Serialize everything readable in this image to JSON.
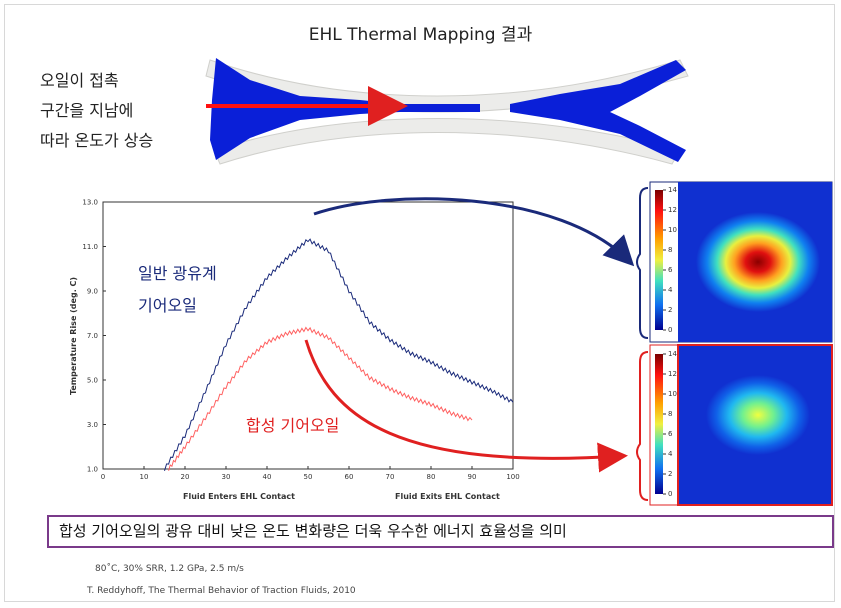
{
  "title": "EHL Thermal Mapping 결과",
  "note_lines": [
    "오일이 접촉",
    "구간을 지남에",
    "따라 온도가 상승"
  ],
  "label_general": [
    "일반 광유계",
    "기어오일"
  ],
  "label_synthetic": "합성 기어오일",
  "summary": "합성 기어오일의 광유 대비 낮은 온도 변화량은 더욱 우수한 에너지 효율성을 의미",
  "conditions": "80˚C, 30% SRR, 1.2 GPa, 2.5 m/s",
  "reference": "T. Reddyhoff, The Thermal Behavior of Traction Fluids, 2010",
  "colors": {
    "general": "#1a2a7a",
    "synthetic": "#ff6060",
    "arrow_red": "#e02020",
    "box": "#7a3a8a",
    "contact_blue": "#0a1fd8"
  },
  "chart_data": {
    "type": "line",
    "xlabel_left": "Fluid Enters EHL Contact",
    "xlabel_right": "Fluid Exits EHL Contact",
    "ylabel": "Temperature Rise (deg. C)",
    "x_ticks": [
      "0",
      "10",
      "20",
      "30",
      "40",
      "50",
      "60",
      "70",
      "80",
      "90",
      "100"
    ],
    "y_ticks": [
      "1.0",
      "3.0",
      "5.0",
      "7.0",
      "9.0",
      "11.0",
      "13.0"
    ],
    "xlim": [
      0,
      100
    ],
    "ylim": [
      1,
      13
    ],
    "grid": false,
    "series": [
      {
        "name": "일반 광유계 기어오일",
        "x": [
          15,
          20,
          25,
          30,
          35,
          40,
          45,
          50,
          55,
          60,
          65,
          70,
          75,
          80,
          85,
          90,
          95,
          100
        ],
        "y": [
          1.0,
          2.5,
          4.5,
          6.6,
          8.3,
          9.6,
          10.5,
          11.3,
          10.8,
          9.0,
          7.6,
          6.8,
          6.2,
          5.8,
          5.3,
          4.9,
          4.5,
          4.0
        ]
      },
      {
        "name": "합성 기어오일",
        "x": [
          16,
          20,
          25,
          30,
          35,
          40,
          45,
          50,
          55,
          60,
          65,
          70,
          75,
          80,
          85,
          90
        ],
        "y": [
          1.0,
          2.0,
          3.3,
          4.7,
          5.9,
          6.7,
          7.1,
          7.3,
          6.9,
          6.0,
          5.1,
          4.6,
          4.2,
          3.9,
          3.5,
          3.2
        ]
      }
    ],
    "colorbar_ticks_top": [
      "14",
      "12",
      "10",
      "8",
      "6",
      "4",
      "2",
      "0"
    ],
    "colorbar_ticks_bottom": [
      "14",
      "12",
      "10",
      "8",
      "6",
      "4",
      "2",
      "0"
    ]
  }
}
